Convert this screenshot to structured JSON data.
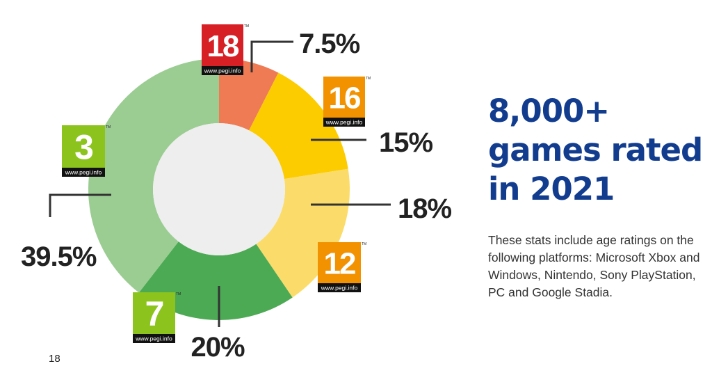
{
  "chart_data": {
    "type": "pie",
    "title": "",
    "categories": [
      "PEGI 18",
      "PEGI 16",
      "PEGI 12",
      "PEGI 7",
      "PEGI 3"
    ],
    "values": [
      7.5,
      15,
      18,
      20,
      39.5
    ],
    "unit": "%",
    "value_labels": [
      "7.5%",
      "15%",
      "18%",
      "20%",
      "39.5%"
    ],
    "colors": [
      "#ee7b53",
      "#fccc00",
      "#fbdc6a",
      "#4daa54",
      "#9bcd93"
    ],
    "badges": [
      {
        "number": "18",
        "url": "www.pegi.info",
        "tm": "TM",
        "bg": "#d71f26"
      },
      {
        "number": "16",
        "url": "www.pegi.info",
        "tm": "TM",
        "bg": "#f39200"
      },
      {
        "number": "12",
        "url": "www.pegi.info",
        "tm": "TM",
        "bg": "#f39200"
      },
      {
        "number": "7",
        "url": "www.pegi.info",
        "tm": "TM",
        "bg": "#8cc41d"
      },
      {
        "number": "3",
        "url": "www.pegi.info",
        "tm": "TM",
        "bg": "#8cc41d"
      }
    ],
    "inner_color": "#eeeeee",
    "line_color": "#333333"
  },
  "headline": {
    "line1": "8,000+",
    "line2": "games rated",
    "line3": "in 2021"
  },
  "description": "These stats include age ratings on the following platforms: Microsoft Xbox and Windows, Nintendo, Sony PlayStation, PC and Google Stadia.",
  "page_number": "18"
}
